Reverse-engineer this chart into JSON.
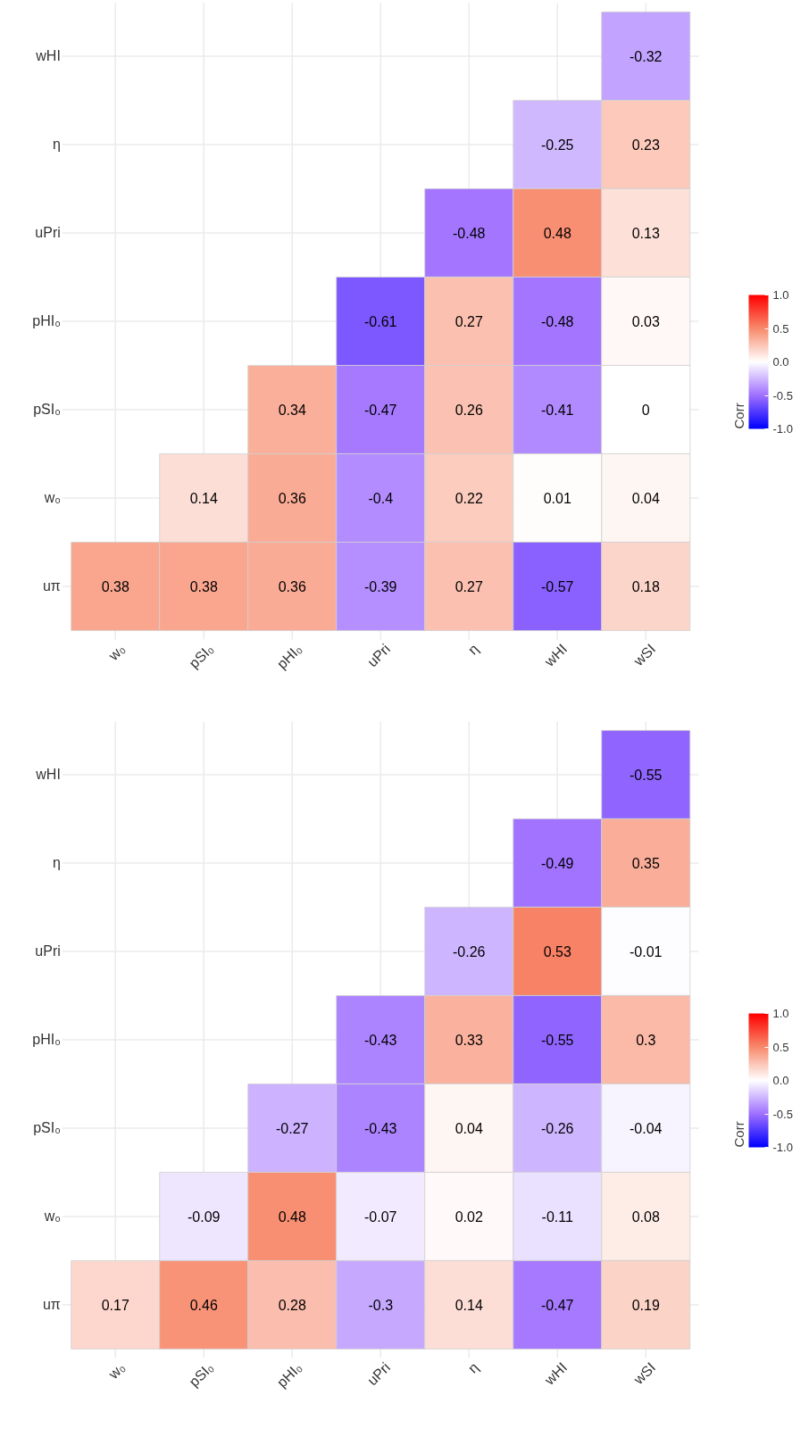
{
  "chart_data": [
    {
      "type": "heatmap",
      "categories": [
        "w₀",
        "pSI₀",
        "pHI₀",
        "uPri",
        "η",
        "wHI",
        "wSI"
      ],
      "y_categories": [
        "wHI",
        "η",
        "uPri",
        "pHI₀",
        "pSI₀",
        "w₀",
        "uπ"
      ],
      "cells": [
        [
          null,
          null,
          null,
          null,
          null,
          null,
          -0.32
        ],
        [
          null,
          null,
          null,
          null,
          null,
          -0.25,
          0.23
        ],
        [
          null,
          null,
          null,
          null,
          -0.48,
          0.48,
          0.13
        ],
        [
          null,
          null,
          null,
          -0.61,
          0.27,
          -0.48,
          0.03
        ],
        [
          null,
          null,
          0.34,
          -0.47,
          0.26,
          -0.41,
          0
        ],
        [
          null,
          0.14,
          0.36,
          -0.4,
          0.22,
          0.01,
          0.04
        ],
        [
          0.38,
          0.38,
          0.36,
          -0.39,
          0.27,
          -0.57,
          0.18
        ]
      ],
      "clim": [
        -1,
        1
      ],
      "cticks": [
        {
          "value": -1,
          "label": "-1.0"
        },
        {
          "value": -0.5,
          "label": "-0.5"
        },
        {
          "value": 0,
          "label": "0.0"
        },
        {
          "value": 0.5,
          "label": "0.5"
        },
        {
          "value": 1,
          "label": "1.0"
        }
      ],
      "clabel": "Corr",
      "data_labels": true,
      "grid": true
    },
    {
      "type": "heatmap",
      "categories": [
        "w₀",
        "pSI₀",
        "pHI₀",
        "uPri",
        "η",
        "wHI",
        "wSI"
      ],
      "y_categories": [
        "wHI",
        "η",
        "uPri",
        "pHI₀",
        "pSI₀",
        "w₀",
        "uπ"
      ],
      "cells": [
        [
          null,
          null,
          null,
          null,
          null,
          null,
          -0.55
        ],
        [
          null,
          null,
          null,
          null,
          null,
          -0.49,
          0.35
        ],
        [
          null,
          null,
          null,
          null,
          -0.26,
          0.53,
          -0.01
        ],
        [
          null,
          null,
          null,
          -0.43,
          0.33,
          -0.55,
          0.3
        ],
        [
          null,
          null,
          -0.27,
          -0.43,
          0.04,
          -0.26,
          -0.04
        ],
        [
          null,
          -0.09,
          0.48,
          -0.07,
          0.02,
          -0.11,
          0.08
        ],
        [
          0.17,
          0.46,
          0.28,
          -0.3,
          0.14,
          -0.47,
          0.19
        ]
      ],
      "clim": [
        -1,
        1
      ],
      "cticks": [
        {
          "value": -1,
          "label": "-1.0"
        },
        {
          "value": -0.5,
          "label": "-0.5"
        },
        {
          "value": 0,
          "label": "0.0"
        },
        {
          "value": 0.5,
          "label": "0.5"
        },
        {
          "value": 1,
          "label": "1.0"
        }
      ],
      "clabel": "Corr",
      "data_labels": true,
      "grid": true
    }
  ]
}
